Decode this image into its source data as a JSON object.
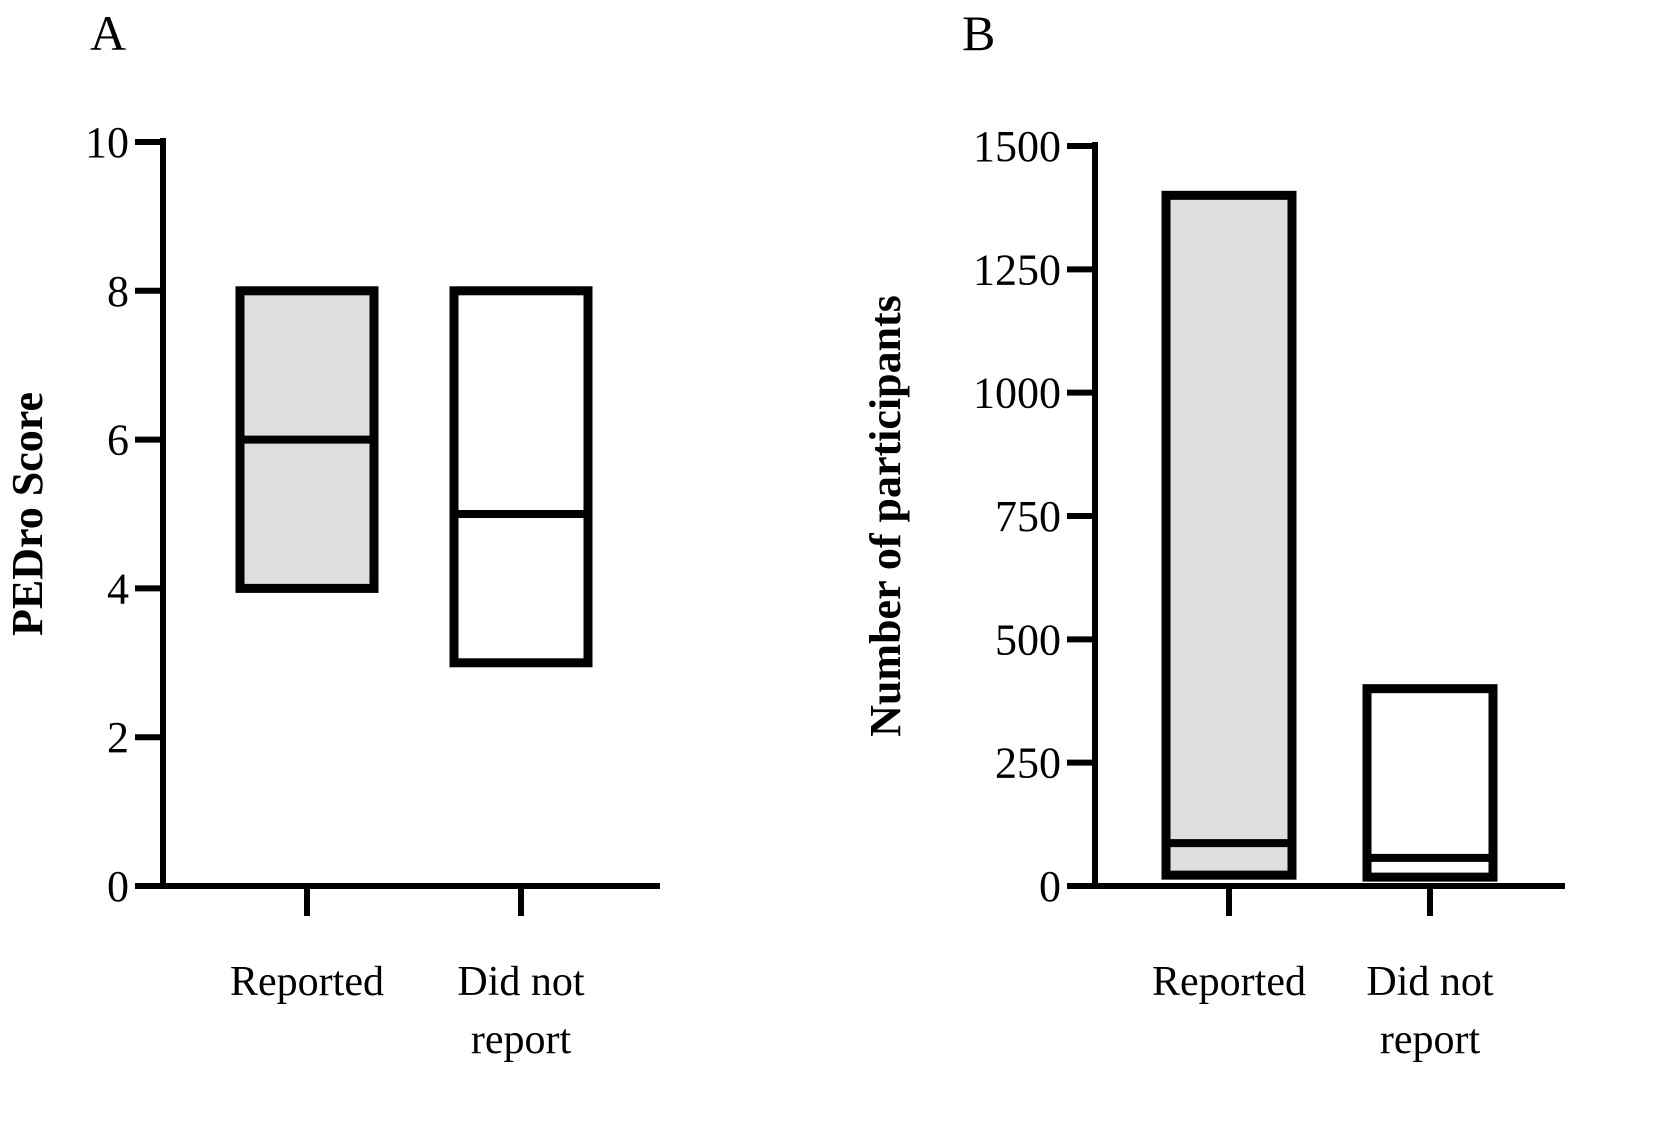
{
  "chart_data": [
    {
      "panel_label": "A",
      "type": "box",
      "ylabel": "PEDro Score",
      "ylim": [
        0,
        10
      ],
      "yticks": [
        "0",
        "2",
        "4",
        "6",
        "8",
        "10"
      ],
      "ytick_values": [
        0,
        2,
        4,
        6,
        8,
        10
      ],
      "categories": [
        [
          "Reported"
        ],
        [
          "Did not",
          "report"
        ]
      ],
      "boxes": [
        {
          "min": 4,
          "median": 6,
          "max": 8,
          "fill": "#dedede"
        },
        {
          "min": 3,
          "median": 5,
          "max": 8,
          "fill": "#ffffff"
        }
      ],
      "grid": false
    },
    {
      "panel_label": "B",
      "type": "box",
      "ylabel": "Number of participants",
      "ylim": [
        0,
        1500
      ],
      "yticks": [
        "0",
        "250",
        "500",
        "750",
        "1000",
        "1250",
        "1500"
      ],
      "ytick_values": [
        0,
        250,
        500,
        750,
        1000,
        1250,
        1500
      ],
      "categories": [
        [
          "Reported"
        ],
        [
          "Did not",
          "report"
        ]
      ],
      "boxes": [
        {
          "min": 22,
          "median": 87,
          "max": 1400,
          "fill": "#dedede"
        },
        {
          "min": 18,
          "median": 57,
          "max": 400,
          "fill": "#ffffff"
        }
      ],
      "grid": false
    }
  ]
}
